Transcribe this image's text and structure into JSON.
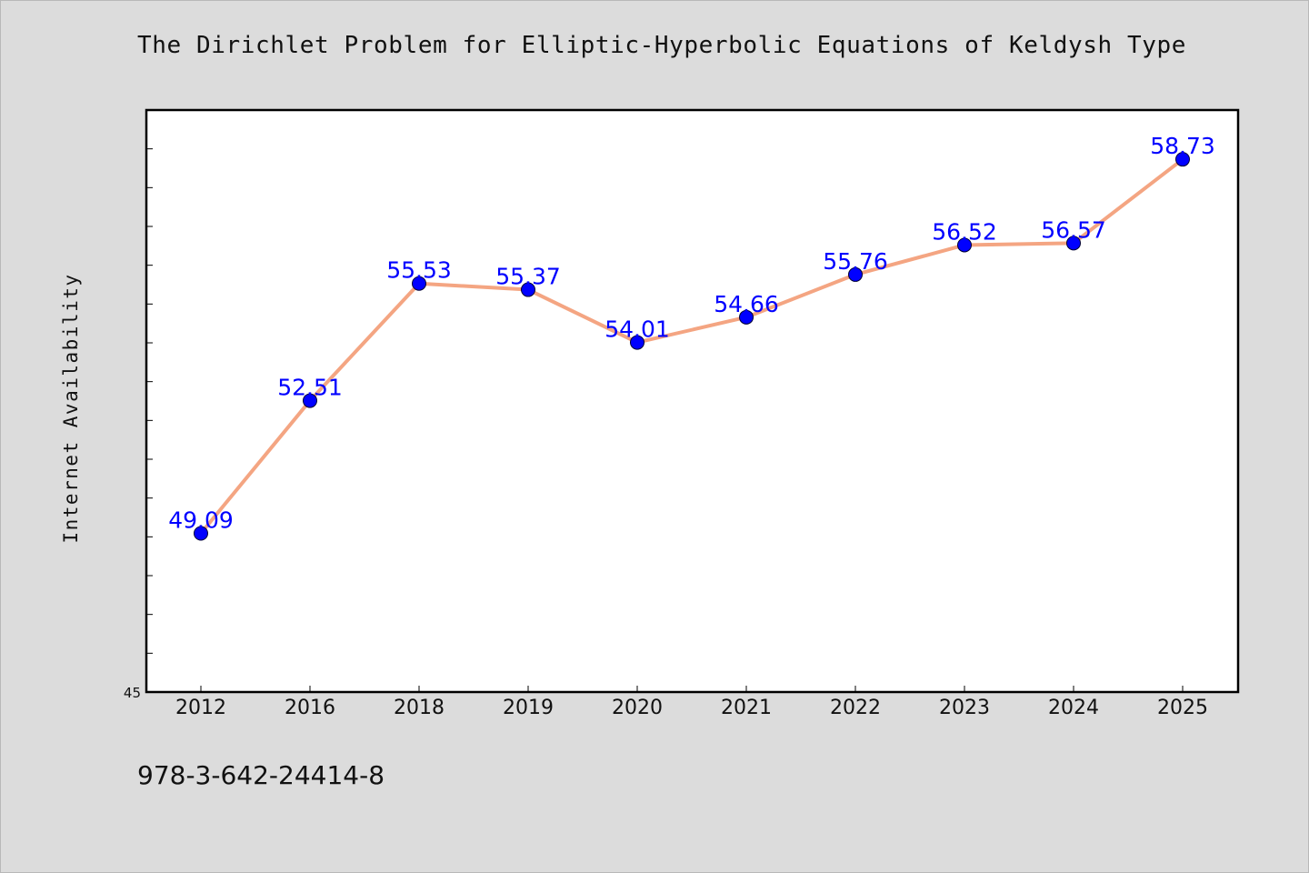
{
  "title": "The Dirichlet Problem for Elliptic-Hyperbolic Equations of Keldysh Type",
  "footer_text": "978-3-642-24414-8",
  "colors": {
    "background": "#dcdcdc",
    "plot_background": "#ffffff",
    "line": "#f4a582",
    "marker": "#0000ff",
    "data_label": "#0000ff"
  },
  "chart_data": {
    "type": "line",
    "title": "The Dirichlet Problem for Elliptic-Hyperbolic Equations of Keldysh Type",
    "xlabel": "",
    "ylabel": "Internet Availability",
    "categories": [
      "2012",
      "2016",
      "2018",
      "2019",
      "2020",
      "2021",
      "2022",
      "2023",
      "2024",
      "2025"
    ],
    "series": [
      {
        "values": [
          49.09,
          52.51,
          55.53,
          55.37,
          54.01,
          54.66,
          55.76,
          56.52,
          56.57,
          58.73
        ],
        "data_labels": [
          "49.09",
          "52.51",
          "55.53",
          "55.37",
          "54.01",
          "54.66",
          "55.76",
          "56.52",
          "56.57",
          "58.73"
        ]
      }
    ],
    "ylim": [
      45,
      60
    ],
    "ytick_labels": [
      "45"
    ],
    "y_minor_tick_step": 1,
    "grid": false,
    "legend": "none"
  }
}
